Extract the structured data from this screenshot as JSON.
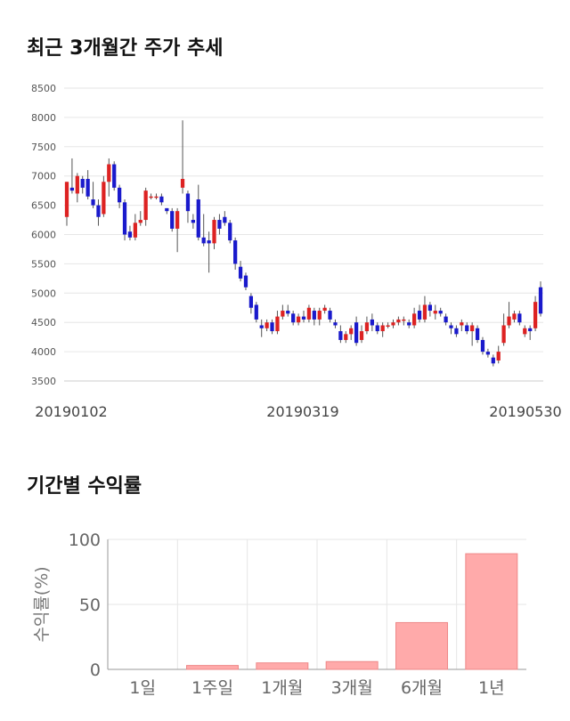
{
  "sections": {
    "price_title": "최근 3개월간 주가 추세",
    "return_title": "기간별 수익률"
  },
  "colors": {
    "up": "#dd2222",
    "down": "#1a1acc",
    "wick": "#555555",
    "grid": "#e6e6e6",
    "bar_fill": "#ffaaaa",
    "bar_stroke": "#ee8888"
  },
  "chart_data": [
    {
      "type": "candlestick",
      "title": "최근 3개월간 주가 추세",
      "ylim": [
        3500,
        8500
      ],
      "yticks": [
        3500,
        4000,
        4500,
        5000,
        5500,
        6000,
        6500,
        7000,
        7500,
        8000,
        8500
      ],
      "xtick_labels": [
        "20190102",
        "20190319",
        "20190530"
      ],
      "grid": true,
      "candles": [
        [
          6300,
          6900,
          6900,
          6150
        ],
        [
          6800,
          6750,
          7300,
          6700
        ],
        [
          6700,
          7000,
          7050,
          6550
        ],
        [
          6950,
          6800,
          7000,
          6700
        ],
        [
          6950,
          6650,
          7100,
          6600
        ],
        [
          6600,
          6500,
          6900,
          6450
        ],
        [
          6500,
          6300,
          6600,
          6150
        ],
        [
          6350,
          6900,
          7000,
          6300
        ],
        [
          6900,
          7200,
          7300,
          6650
        ],
        [
          7200,
          6800,
          7250,
          6750
        ],
        [
          6800,
          6550,
          6850,
          6450
        ],
        [
          6550,
          6000,
          6600,
          5900
        ],
        [
          6050,
          5950,
          6150,
          5900
        ],
        [
          5950,
          6200,
          6350,
          5900
        ],
        [
          6200,
          6250,
          6400,
          6150
        ],
        [
          6250,
          6750,
          6800,
          6150
        ],
        [
          6650,
          6650,
          6700,
          6600
        ],
        [
          6650,
          6650,
          6700,
          6600
        ],
        [
          6650,
          6550,
          6700,
          6500
        ],
        [
          6450,
          6400,
          6450,
          6350
        ],
        [
          6400,
          6100,
          6450,
          6050
        ],
        [
          6100,
          6400,
          6450,
          5700
        ],
        [
          6800,
          6950,
          7950,
          6700
        ],
        [
          6700,
          6400,
          6750,
          6200
        ],
        [
          6250,
          6200,
          6350,
          6100
        ],
        [
          6600,
          5950,
          6850,
          5900
        ],
        [
          5950,
          5850,
          6350,
          5800
        ],
        [
          5900,
          5850,
          6050,
          5350
        ],
        [
          5850,
          6250,
          6300,
          5750
        ],
        [
          6250,
          6100,
          6350,
          6000
        ],
        [
          6300,
          6200,
          6400,
          6150
        ],
        [
          6200,
          5900,
          6250,
          5850
        ],
        [
          5900,
          5500,
          5950,
          5400
        ],
        [
          5450,
          5250,
          5550,
          5200
        ],
        [
          5300,
          5100,
          5350,
          5050
        ],
        [
          4950,
          4750,
          5000,
          4650
        ],
        [
          4800,
          4550,
          4850,
          4500
        ],
        [
          4450,
          4400,
          4550,
          4250
        ],
        [
          4400,
          4500,
          4550,
          4350
        ],
        [
          4500,
          4350,
          4550,
          4300
        ],
        [
          4350,
          4600,
          4700,
          4300
        ],
        [
          4600,
          4700,
          4800,
          4550
        ],
        [
          4700,
          4650,
          4800,
          4600
        ],
        [
          4650,
          4500,
          4700,
          4450
        ],
        [
          4500,
          4600,
          4650,
          4450
        ],
        [
          4600,
          4550,
          4700,
          4500
        ],
        [
          4550,
          4750,
          4800,
          4500
        ],
        [
          4700,
          4550,
          4750,
          4450
        ],
        [
          4550,
          4700,
          4750,
          4450
        ],
        [
          4700,
          4750,
          4800,
          4650
        ],
        [
          4700,
          4550,
          4750,
          4500
        ],
        [
          4500,
          4450,
          4550,
          4400
        ],
        [
          4350,
          4200,
          4450,
          4150
        ],
        [
          4200,
          4300,
          4350,
          4150
        ],
        [
          4300,
          4400,
          4450,
          4200
        ],
        [
          4500,
          4150,
          4600,
          4100
        ],
        [
          4200,
          4350,
          4450,
          4150
        ],
        [
          4350,
          4500,
          4600,
          4300
        ],
        [
          4550,
          4450,
          4650,
          4350
        ],
        [
          4450,
          4350,
          4500,
          4300
        ],
        [
          4350,
          4450,
          4500,
          4250
        ],
        [
          4450,
          4450,
          4500,
          4400
        ],
        [
          4450,
          4500,
          4550,
          4400
        ],
        [
          4500,
          4550,
          4600,
          4450
        ],
        [
          4550,
          4550,
          4600,
          4450
        ],
        [
          4500,
          4450,
          4550,
          4400
        ],
        [
          4450,
          4650,
          4750,
          4400
        ],
        [
          4700,
          4550,
          4800,
          4500
        ],
        [
          4550,
          4800,
          4950,
          4500
        ],
        [
          4800,
          4700,
          4850,
          4600
        ],
        [
          4650,
          4700,
          4800,
          4550
        ],
        [
          4700,
          4650,
          4750,
          4600
        ],
        [
          4600,
          4500,
          4650,
          4450
        ],
        [
          4450,
          4400,
          4500,
          4300
        ],
        [
          4400,
          4300,
          4450,
          4250
        ],
        [
          4450,
          4500,
          4550,
          4350
        ],
        [
          4450,
          4350,
          4500,
          4300
        ],
        [
          4350,
          4450,
          4500,
          4100
        ],
        [
          4400,
          4200,
          4450,
          4150
        ],
        [
          4200,
          4000,
          4250,
          3950
        ],
        [
          4000,
          3950,
          4050,
          3900
        ],
        [
          3900,
          3800,
          3950,
          3750
        ],
        [
          3850,
          4000,
          4100,
          3800
        ],
        [
          4150,
          4450,
          4650,
          4100
        ],
        [
          4450,
          4600,
          4850,
          4400
        ],
        [
          4550,
          4650,
          4700,
          4500
        ],
        [
          4650,
          4500,
          4700,
          4450
        ],
        [
          4300,
          4400,
          4450,
          4250
        ],
        [
          4400,
          4350,
          4450,
          4200
        ],
        [
          4400,
          4850,
          4950,
          4350
        ],
        [
          5100,
          4650,
          5200,
          4600
        ]
      ]
    },
    {
      "type": "bar",
      "title": "기간별 수익률",
      "ylabel": "수익률(%)",
      "ylim": [
        0,
        100
      ],
      "yticks": [
        0,
        50,
        100
      ],
      "categories": [
        "1일",
        "1주일",
        "1개월",
        "3개월",
        "6개월",
        "1년"
      ],
      "values": [
        0,
        3,
        5,
        6,
        36,
        89
      ],
      "grid": true
    }
  ]
}
